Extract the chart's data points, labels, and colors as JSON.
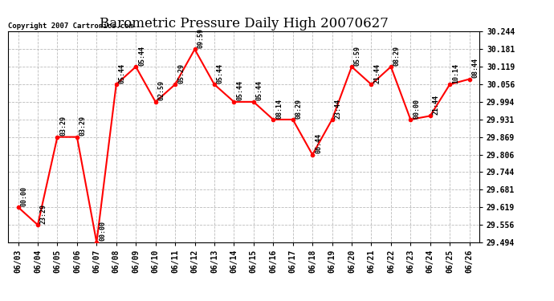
{
  "title": "Barometric Pressure Daily High 20070627",
  "copyright": "Copyright 2007 Cartronics.com",
  "dates": [
    "06/03",
    "06/04",
    "06/05",
    "06/06",
    "06/07",
    "06/08",
    "06/09",
    "06/10",
    "06/11",
    "06/12",
    "06/13",
    "06/14",
    "06/15",
    "06/16",
    "06/17",
    "06/18",
    "06/19",
    "06/20",
    "06/21",
    "06/22",
    "06/23",
    "06/24",
    "06/25",
    "06/26"
  ],
  "values": [
    29.619,
    29.556,
    29.869,
    29.869,
    29.494,
    30.056,
    30.119,
    29.994,
    30.056,
    30.181,
    30.056,
    29.994,
    29.994,
    29.931,
    29.931,
    29.806,
    29.931,
    30.119,
    30.056,
    30.119,
    29.931,
    29.944,
    30.056,
    30.075
  ],
  "time_labels": [
    "00:00",
    "23:29",
    "03:29",
    "03:29",
    "00:00",
    "05:44",
    "05:44",
    "02:59",
    "05:29",
    "09:59",
    "05:44",
    "05:44",
    "05:44",
    "08:14",
    "08:29",
    "06:44",
    "23:44",
    "05:59",
    "21:44",
    "08:29",
    "00:00",
    "21:44",
    "10:14",
    "08:44"
  ],
  "ylim_min": 29.494,
  "ylim_max": 30.244,
  "yticks": [
    29.494,
    29.556,
    29.619,
    29.681,
    29.744,
    29.806,
    29.869,
    29.931,
    29.994,
    30.056,
    30.119,
    30.181,
    30.244
  ],
  "line_color": "red",
  "marker_color": "red",
  "marker_style": "o",
  "marker_size": 3,
  "background_color": "white",
  "grid_color": "#bbbbbb",
  "title_fontsize": 12,
  "tick_fontsize": 7,
  "annotation_fontsize": 6
}
